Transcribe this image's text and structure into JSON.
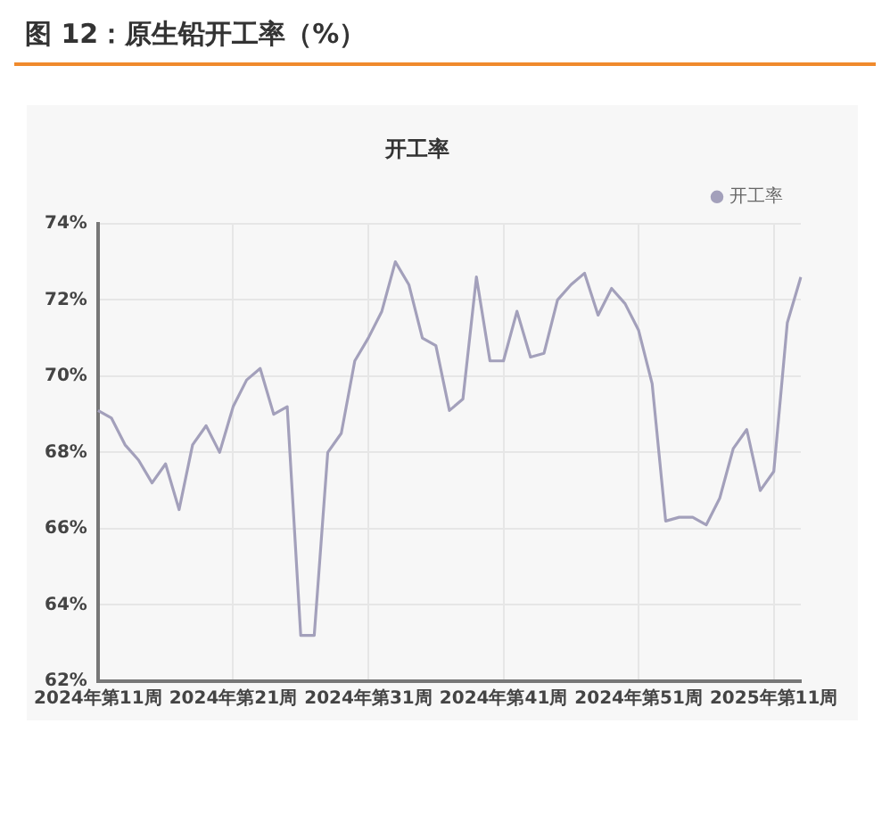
{
  "chart_data": {
    "type": "line",
    "title": "图 12：原生铅开工率（%）",
    "subtitle": "开工率",
    "categories": [
      "2024年第11周",
      null,
      null,
      null,
      null,
      null,
      null,
      null,
      null,
      null,
      "2024年第21周",
      null,
      null,
      null,
      null,
      null,
      null,
      null,
      null,
      null,
      "2024年第31周",
      null,
      null,
      null,
      null,
      null,
      null,
      null,
      null,
      null,
      "2024年第41周",
      null,
      null,
      null,
      null,
      null,
      null,
      null,
      null,
      null,
      "2024年第51周",
      null,
      null,
      null,
      null,
      null,
      null,
      null,
      null,
      null,
      "2025年第11周",
      null,
      null
    ],
    "series": [
      {
        "name": "开工率",
        "color": "#a3a0bb",
        "values": [
          69.1,
          68.9,
          68.2,
          67.8,
          67.2,
          67.7,
          66.5,
          68.2,
          68.7,
          68.0,
          69.2,
          69.9,
          70.2,
          69.0,
          69.2,
          63.2,
          63.2,
          68.0,
          68.5,
          70.4,
          71.0,
          71.7,
          73.0,
          72.4,
          71.0,
          70.8,
          69.1,
          69.4,
          72.6,
          70.4,
          70.4,
          71.7,
          70.5,
          70.6,
          72.0,
          72.4,
          72.7,
          71.6,
          72.3,
          71.9,
          71.2,
          69.8,
          66.2,
          66.3,
          66.3,
          66.1,
          66.8,
          68.1,
          68.6,
          67.0,
          67.5,
          71.4,
          72.6
        ]
      }
    ],
    "ylim": [
      62,
      74
    ],
    "yticks": [
      {
        "value": 62,
        "label": "62%"
      },
      {
        "value": 64,
        "label": "64%"
      },
      {
        "value": 66,
        "label": "66%"
      },
      {
        "value": 68,
        "label": "68%"
      },
      {
        "value": 70,
        "label": "70%"
      },
      {
        "value": 72,
        "label": "72%"
      },
      {
        "value": 74,
        "label": "74%"
      }
    ],
    "grid": true,
    "legend": "top right",
    "marker": "none",
    "line_style": "solid"
  }
}
